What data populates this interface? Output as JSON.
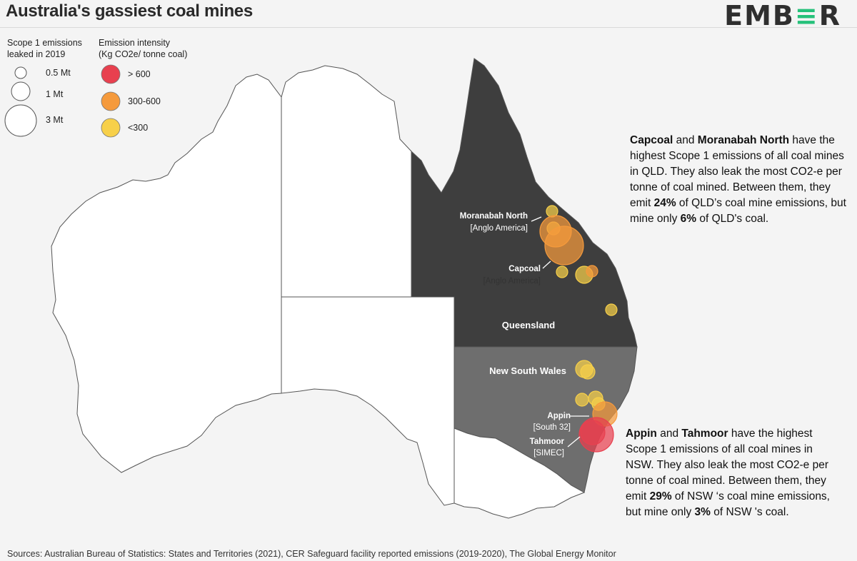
{
  "header": {
    "title": "Australia's gassiest coal mines",
    "brand_prefix": "EMB",
    "brand_accent": "≡",
    "brand_suffix": "R"
  },
  "legend": {
    "size_title": "Scope 1 emissions leaked in 2019",
    "size_title_line1": "Scope 1 emissions",
    "size_title_line2": "leaked in 2019",
    "sizes": [
      {
        "label": "0.5 Mt",
        "value_mt": 0.5
      },
      {
        "label": "1 Mt",
        "value_mt": 1
      },
      {
        "label": "3 Mt",
        "value_mt": 3
      }
    ],
    "color_title_line1": "Emission intensity",
    "color_title_line2": "(Kg CO2e/ tonne coal)",
    "colors": [
      {
        "label": "> 600",
        "color": "#e8404f"
      },
      {
        "label": "300-600",
        "color": "#f59a3c"
      },
      {
        "label": "<300",
        "color": "#f7d04a"
      }
    ]
  },
  "map": {
    "state_labels": {
      "qld": "Queensland",
      "nsw": "New South Wales"
    },
    "state_colors": {
      "qld": "#3e3e3e",
      "nsw": "#6e6e6e",
      "other": "#ffffff",
      "border": "#555555"
    },
    "mine_labels": [
      {
        "name": "Moranabah North",
        "owner": "[Anglo America]"
      },
      {
        "name": "Capcoal",
        "owner": "[Anglo America]"
      },
      {
        "name": "Appin",
        "owner": "[South 32]"
      },
      {
        "name": "Tahmoor",
        "owner": "[SIMEC]"
      }
    ]
  },
  "annotations": {
    "qld": {
      "p1": "Capcoal",
      "p2": " and ",
      "p3": "Moranabah North",
      "p4": " have the highest Scope 1 emissions of all coal mines in QLD. They also leak the most CO2-e per tonne of coal mined. Between them, they emit ",
      "p5": "24%",
      "p6": " of QLD’s coal mine emissions, but mine only ",
      "p7": "6%",
      "p8": " of QLD's coal."
    },
    "nsw": {
      "p1": "Appin",
      "p2": " and ",
      "p3": "Tahmoor",
      "p4": " have the highest Scope 1 emissions of all coal mines in NSW. They also leak the most CO2-e per tonne of coal mined. Between them, they emit ",
      "p5": "29%",
      "p6": " of NSW ‘s coal mine emissions, but mine only ",
      "p7": "3%",
      "p8": " of NSW 's coal."
    }
  },
  "footer": {
    "source": "Sources: Australian Bureau of Statistics: States and Territories (2021), CER Safeguard facility reported emissions (2019-2020), The Global Energy Monitor"
  }
}
